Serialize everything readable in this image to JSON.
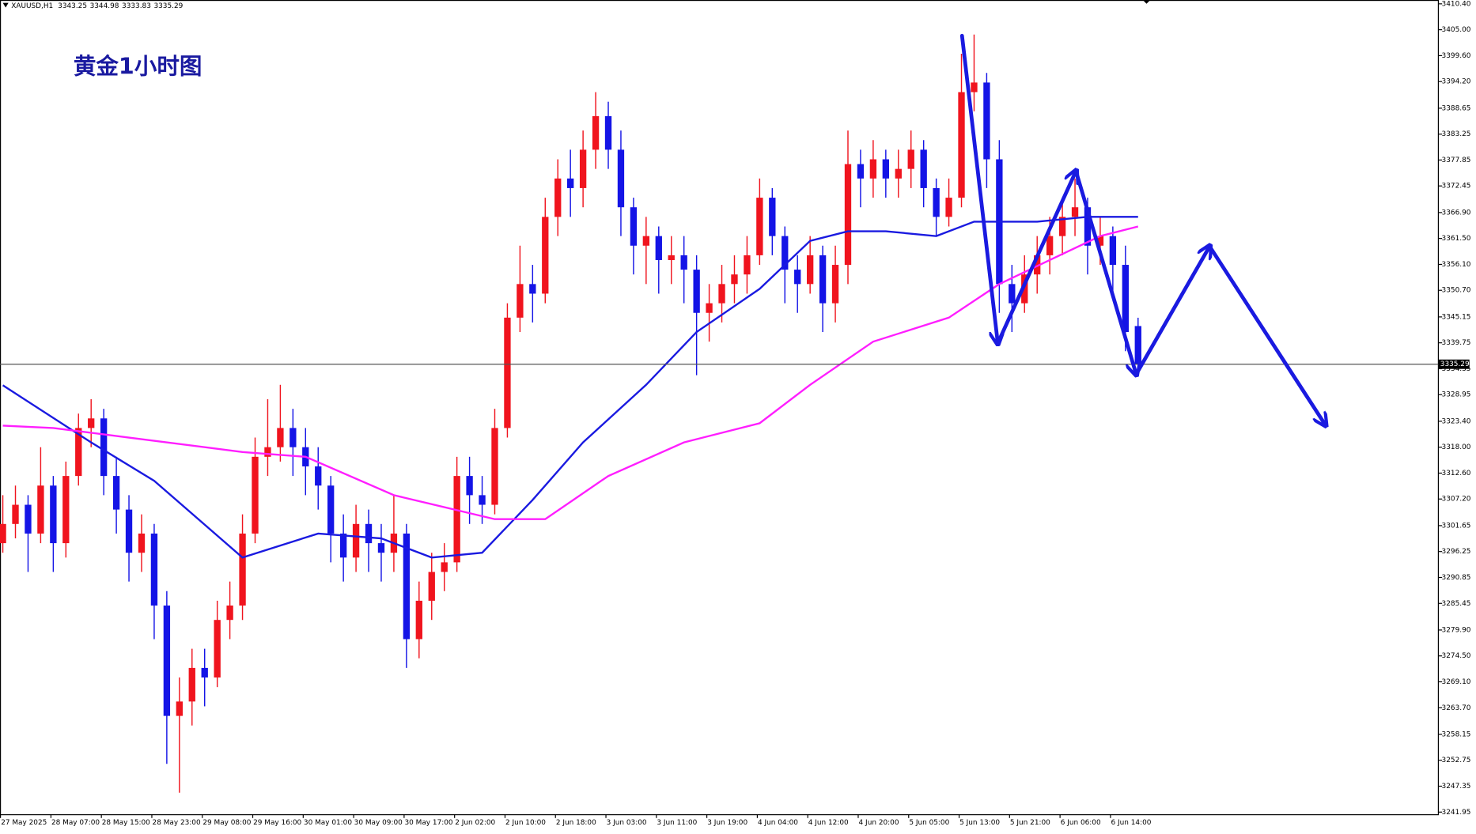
{
  "chart_data": {
    "type": "candlestick",
    "symbol": "XAUUSD,H1",
    "title": "黄金1小时图",
    "up_color": "#f0141e",
    "down_color": "#1414e6",
    "candles": [
      [
        3298,
        3308,
        3296,
        3302
      ],
      [
        3302,
        3310,
        3299,
        3306
      ],
      [
        3306,
        3308,
        3292,
        3300
      ],
      [
        3300,
        3318,
        3298,
        3310
      ],
      [
        3310,
        3312,
        3292,
        3298
      ],
      [
        3298,
        3315,
        3295,
        3312
      ],
      [
        3312,
        3325,
        3310,
        3322
      ],
      [
        3322,
        3328,
        3318,
        3324
      ],
      [
        3324,
        3326,
        3308,
        3312
      ],
      [
        3312,
        3316,
        3300,
        3305
      ],
      [
        3305,
        3308,
        3290,
        3296
      ],
      [
        3296,
        3304,
        3292,
        3300
      ],
      [
        3300,
        3302,
        3278,
        3285
      ],
      [
        3285,
        3288,
        3252,
        3262
      ],
      [
        3262,
        3270,
        3246,
        3265
      ],
      [
        3265,
        3276,
        3260,
        3272
      ],
      [
        3272,
        3276,
        3264,
        3270
      ],
      [
        3270,
        3286,
        3268,
        3282
      ],
      [
        3282,
        3290,
        3278,
        3285
      ],
      [
        3285,
        3304,
        3282,
        3300
      ],
      [
        3300,
        3320,
        3298,
        3316
      ],
      [
        3316,
        3328,
        3312,
        3318
      ],
      [
        3318,
        3331,
        3315,
        3322
      ],
      [
        3322,
        3326,
        3312,
        3318
      ],
      [
        3318,
        3322,
        3308,
        3314
      ],
      [
        3314,
        3318,
        3305,
        3310
      ],
      [
        3310,
        3312,
        3294,
        3300
      ],
      [
        3300,
        3304,
        3290,
        3295
      ],
      [
        3295,
        3306,
        3292,
        3302
      ],
      [
        3302,
        3305,
        3292,
        3298
      ],
      [
        3298,
        3302,
        3290,
        3296
      ],
      [
        3296,
        3308,
        3292,
        3300
      ],
      [
        3300,
        3302,
        3272,
        3278
      ],
      [
        3278,
        3290,
        3274,
        3286
      ],
      [
        3286,
        3296,
        3282,
        3292
      ],
      [
        3292,
        3298,
        3288,
        3294
      ],
      [
        3294,
        3316,
        3292,
        3312
      ],
      [
        3312,
        3316,
        3302,
        3308
      ],
      [
        3308,
        3312,
        3302,
        3306
      ],
      [
        3306,
        3326,
        3304,
        3322
      ],
      [
        3322,
        3348,
        3320,
        3345
      ],
      [
        3345,
        3360,
        3342,
        3352
      ],
      [
        3352,
        3356,
        3344,
        3350
      ],
      [
        3350,
        3370,
        3348,
        3366
      ],
      [
        3366,
        3378,
        3362,
        3374
      ],
      [
        3374,
        3380,
        3366,
        3372
      ],
      [
        3372,
        3384,
        3368,
        3380
      ],
      [
        3380,
        3392,
        3376,
        3387
      ],
      [
        3387,
        3390,
        3376,
        3380
      ],
      [
        3380,
        3384,
        3362,
        3368
      ],
      [
        3368,
        3370,
        3354,
        3360
      ],
      [
        3360,
        3366,
        3352,
        3362
      ],
      [
        3362,
        3364,
        3350,
        3357
      ],
      [
        3357,
        3362,
        3352,
        3358
      ],
      [
        3358,
        3362,
        3348,
        3355
      ],
      [
        3355,
        3358,
        3333,
        3346
      ],
      [
        3346,
        3352,
        3340,
        3348
      ],
      [
        3348,
        3356,
        3344,
        3352
      ],
      [
        3352,
        3358,
        3348,
        3354
      ],
      [
        3354,
        3362,
        3350,
        3358
      ],
      [
        3358,
        3374,
        3356,
        3370
      ],
      [
        3370,
        3372,
        3358,
        3362
      ],
      [
        3362,
        3364,
        3348,
        3355
      ],
      [
        3355,
        3358,
        3346,
        3352
      ],
      [
        3352,
        3362,
        3350,
        3358
      ],
      [
        3358,
        3360,
        3342,
        3348
      ],
      [
        3348,
        3360,
        3344,
        3356
      ],
      [
        3356,
        3384,
        3352,
        3377
      ],
      [
        3377,
        3380,
        3368,
        3374
      ],
      [
        3374,
        3382,
        3370,
        3378
      ],
      [
        3378,
        3380,
        3370,
        3374
      ],
      [
        3374,
        3380,
        3370,
        3376
      ],
      [
        3376,
        3384,
        3372,
        3380
      ],
      [
        3380,
        3382,
        3368,
        3372
      ],
      [
        3372,
        3374,
        3362,
        3366
      ],
      [
        3366,
        3374,
        3364,
        3370
      ],
      [
        3370,
        3400,
        3368,
        3392
      ],
      [
        3392,
        3404,
        3388,
        3394
      ],
      [
        3394,
        3396,
        3372,
        3378
      ],
      [
        3378,
        3382,
        3346,
        3352
      ],
      [
        3352,
        3356,
        3342,
        3348
      ],
      [
        3348,
        3358,
        3346,
        3354
      ],
      [
        3354,
        3362,
        3350,
        3358
      ],
      [
        3358,
        3366,
        3354,
        3362
      ],
      [
        3362,
        3370,
        3358,
        3366
      ],
      [
        3366,
        3374,
        3362,
        3368
      ],
      [
        3368,
        3370,
        3354,
        3360
      ],
      [
        3360,
        3366,
        3356,
        3362
      ],
      [
        3362,
        3364,
        3350,
        3356
      ],
      [
        3356,
        3360,
        3338,
        3342
      ],
      [
        3343.25,
        3344.98,
        3333.83,
        3335.29
      ]
    ],
    "series": [
      {
        "color": "#1a1ae0",
        "x": [
          0,
          7,
          12,
          19,
          25,
          30,
          34,
          38,
          42,
          46,
          51,
          55,
          60,
          64,
          67,
          70,
          74,
          77,
          82,
          86,
          90
        ],
        "values": [
          3330.9,
          3319,
          3311,
          3295,
          3300,
          3299,
          3295,
          3296,
          3307,
          3319,
          3331,
          3342,
          3351,
          3361,
          3363,
          3363,
          3362,
          3365,
          3365,
          3366,
          3366
        ]
      },
      {
        "color": "#ff1eff",
        "x": [
          0,
          4,
          10,
          19,
          24,
          31,
          39,
          43,
          48,
          54,
          60,
          64,
          69,
          75,
          79,
          83,
          87,
          90
        ],
        "values": [
          3322.5,
          3322,
          3320,
          3317,
          3316,
          3308,
          3303,
          3303,
          3312,
          3319,
          3323,
          3331,
          3340,
          3345,
          3352,
          3357,
          3362,
          3364
        ]
      }
    ],
    "xlabels": [
      "27 May 2025",
      "28 May 07:00",
      "28 May 15:00",
      "28 May 23:00",
      "29 May 08:00",
      "29 May 16:00",
      "30 May 01:00",
      "30 May 09:00",
      "30 May 17:00",
      "2 Jun 02:00",
      "2 Jun 10:00",
      "2 Jun 18:00",
      "3 Jun 03:00",
      "3 Jun 11:00",
      "3 Jun 19:00",
      "4 Jun 04:00",
      "4 Jun 12:00",
      "4 Jun 20:00",
      "5 Jun 05:00",
      "5 Jun 13:00",
      "5 Jun 21:00",
      "6 Jun 06:00",
      "6 Jun 14:00"
    ],
    "ylim": [
      3241.5,
      3411.2
    ],
    "yticks": [
      {
        "value": 3410.4,
        "label": "3410.40"
      },
      {
        "value": 3405,
        "label": "3405.00"
      },
      {
        "value": 3399.6,
        "label": "3399.60"
      },
      {
        "value": 3394.2,
        "label": "3394.20"
      },
      {
        "value": 3388.65,
        "label": "3388.65"
      },
      {
        "value": 3383.25,
        "label": "3383.25"
      },
      {
        "value": 3377.85,
        "label": "3377.85"
      },
      {
        "value": 3372.45,
        "label": "3372.45"
      },
      {
        "value": 3366.9,
        "label": "3366.90"
      },
      {
        "value": 3361.5,
        "label": "3361.50"
      },
      {
        "value": 3356.1,
        "label": "3356.10"
      },
      {
        "value": 3350.7,
        "label": "3350.70"
      },
      {
        "value": 3345.15,
        "label": "3345.15"
      },
      {
        "value": 3339.75,
        "label": "3339.75"
      },
      {
        "value": 3334.35,
        "label": "3334.35"
      },
      {
        "value": 3328.95,
        "label": "3328.95"
      },
      {
        "value": 3323.4,
        "label": "3323.40"
      },
      {
        "value": 3318,
        "label": "3318.00"
      },
      {
        "value": 3312.6,
        "label": "3312.60"
      },
      {
        "value": 3307.2,
        "label": "3307.20"
      },
      {
        "value": 3301.65,
        "label": "3301.65"
      },
      {
        "value": 3296.25,
        "label": "3296.25"
      },
      {
        "value": 3290.85,
        "label": "3290.85"
      },
      {
        "value": 3285.45,
        "label": "3285.45"
      },
      {
        "value": 3279.9,
        "label": "3279.90"
      },
      {
        "value": 3274.5,
        "label": "3274.50"
      },
      {
        "value": 3269.1,
        "label": "3269.10"
      },
      {
        "value": 3263.7,
        "label": "3263.70"
      },
      {
        "value": 3258.15,
        "label": "3258.15"
      },
      {
        "value": 3252.75,
        "label": "3252.75"
      },
      {
        "value": 3247.35,
        "label": "3247.35"
      },
      {
        "value": 3241.95,
        "label": "3241.95"
      }
    ]
  }
}
